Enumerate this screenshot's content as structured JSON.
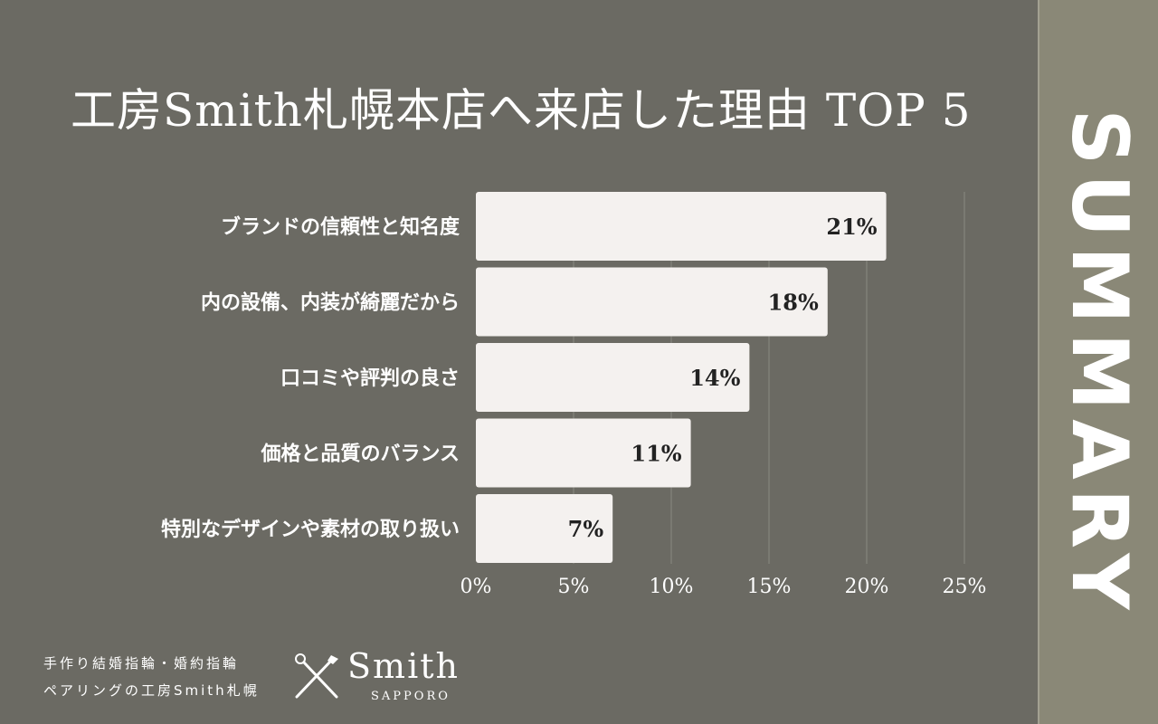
{
  "chart_data": {
    "type": "bar",
    "orientation": "horizontal",
    "title": "工房Smith札幌本店へ来店した理由 TOP 5",
    "categories": [
      "ブランドの信頼性と知名度",
      "内の設備、内装が綺麗だから",
      "口コミや評判の良さ",
      "価格と品質のバランス",
      "特別なデザインや素材の取り扱い"
    ],
    "values": [
      21,
      18,
      14,
      11,
      7
    ],
    "value_labels": [
      "21%",
      "18%",
      "14%",
      "11%",
      "7%"
    ],
    "xlim": [
      0,
      25
    ],
    "x_ticks": [
      "0%",
      "5%",
      "10%",
      "15%",
      "20%",
      "25%"
    ],
    "grid": true,
    "bar_color": "#f4f1ef",
    "grid_color": "#8a8980"
  },
  "side_panel": {
    "text": "SUMMARY"
  },
  "footer": {
    "line1": "手作り結婚指輪・婚約指輪",
    "line2": "ペアリングの工房Smith札幌",
    "logo_icon": "crossed-tools-icon",
    "logo_name": "Smith",
    "logo_sub": "SAPPORO"
  }
}
